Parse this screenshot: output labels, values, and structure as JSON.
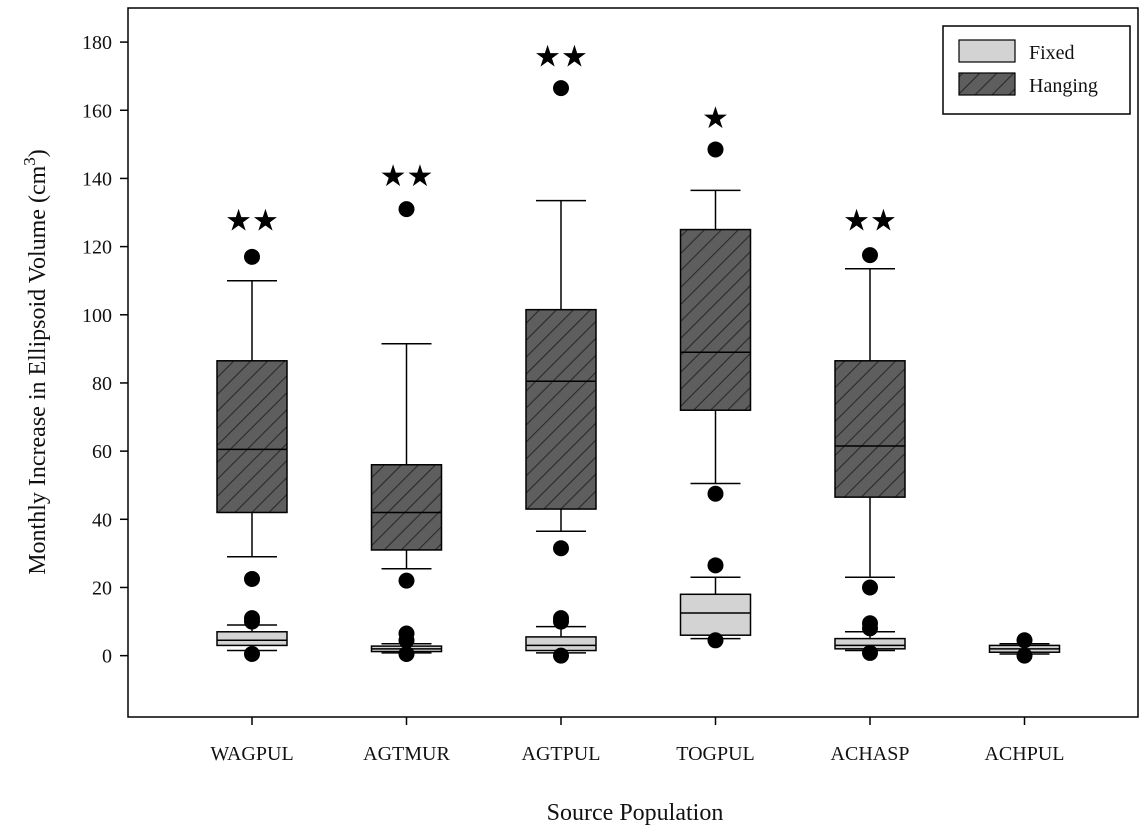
{
  "chart_data": {
    "type": "boxplot",
    "xlabel": "Source Population",
    "ylabel": "Monthly Increase in Ellipsoid Volume (cm",
    "ylabel_sup": "3",
    "ylabel_end": ")",
    "ylim": [
      -18,
      190
    ],
    "yticks": [
      0,
      20,
      40,
      60,
      80,
      100,
      120,
      140,
      160,
      180
    ],
    "categories": [
      "WAGPUL",
      "AGTMUR",
      "AGTPUL",
      "TOGPUL",
      "ACHASP",
      "ACHPUL"
    ],
    "legend": {
      "position": "top-right",
      "entries": [
        {
          "label": "Fixed",
          "series": "fixed"
        },
        {
          "label": "Hanging",
          "series": "hanging"
        }
      ]
    },
    "colors": {
      "fixed": "#d3d3d3",
      "hanging": "#5e5e5e",
      "line": "#000000"
    },
    "series": {
      "hanging": [
        {
          "category": "WAGPUL",
          "whisker_low": 29,
          "q1": 42,
          "median": 60.5,
          "q3": 86.5,
          "whisker_high": 110,
          "outliers": [
            22.5,
            117
          ]
        },
        {
          "category": "AGTMUR",
          "whisker_low": 25.5,
          "q1": 31,
          "median": 42,
          "q3": 56,
          "whisker_high": 91.5,
          "outliers": [
            22,
            131
          ]
        },
        {
          "category": "AGTPUL",
          "whisker_low": 36.5,
          "q1": 43,
          "median": 80.5,
          "q3": 101.5,
          "whisker_high": 133.5,
          "outliers": [
            31.5,
            166.5
          ]
        },
        {
          "category": "TOGPUL",
          "whisker_low": 50.5,
          "q1": 72,
          "median": 89,
          "q3": 125,
          "whisker_high": 136.5,
          "outliers": [
            47.5,
            148.5
          ]
        },
        {
          "category": "ACHASP",
          "whisker_low": 23,
          "q1": 46.5,
          "median": 61.5,
          "q3": 86.5,
          "whisker_high": 113.5,
          "outliers": [
            20,
            117.5
          ]
        }
      ],
      "fixed": [
        {
          "category": "WAGPUL",
          "whisker_low": 1.5,
          "q1": 3,
          "median": 4.5,
          "q3": 7,
          "whisker_high": 9,
          "outliers": [
            0.5,
            10,
            11
          ]
        },
        {
          "category": "AGTMUR",
          "whisker_low": 0.8,
          "q1": 1.2,
          "median": 2,
          "q3": 2.8,
          "whisker_high": 3.5,
          "outliers": [
            0.5,
            4.5,
            6.5
          ]
        },
        {
          "category": "AGTPUL",
          "whisker_low": 0.8,
          "q1": 1.5,
          "median": 3,
          "q3": 5.5,
          "whisker_high": 8.5,
          "outliers": [
            0,
            10,
            11
          ]
        },
        {
          "category": "TOGPUL",
          "whisker_low": 5,
          "q1": 6,
          "median": 12.5,
          "q3": 18,
          "whisker_high": 23,
          "outliers": [
            4.5,
            26.5
          ]
        },
        {
          "category": "ACHASP",
          "whisker_low": 1.5,
          "q1": 2,
          "median": 3,
          "q3": 5,
          "whisker_high": 7,
          "outliers": [
            0.8,
            8,
            9.5
          ]
        },
        {
          "category": "ACHPUL",
          "whisker_low": 0.5,
          "q1": 1,
          "median": 2,
          "q3": 3,
          "whisker_high": 3.5,
          "outliers": [
            0,
            4.5
          ]
        }
      ]
    },
    "annotations": [
      {
        "category": "WAGPUL",
        "text": "★★",
        "y": 128
      },
      {
        "category": "AGTMUR",
        "text": "★★",
        "y": 141
      },
      {
        "category": "AGTPUL",
        "text": "★★",
        "y": 176
      },
      {
        "category": "TOGPUL",
        "text": "★",
        "y": 158
      },
      {
        "category": "ACHASP",
        "text": "★★",
        "y": 128
      }
    ]
  }
}
